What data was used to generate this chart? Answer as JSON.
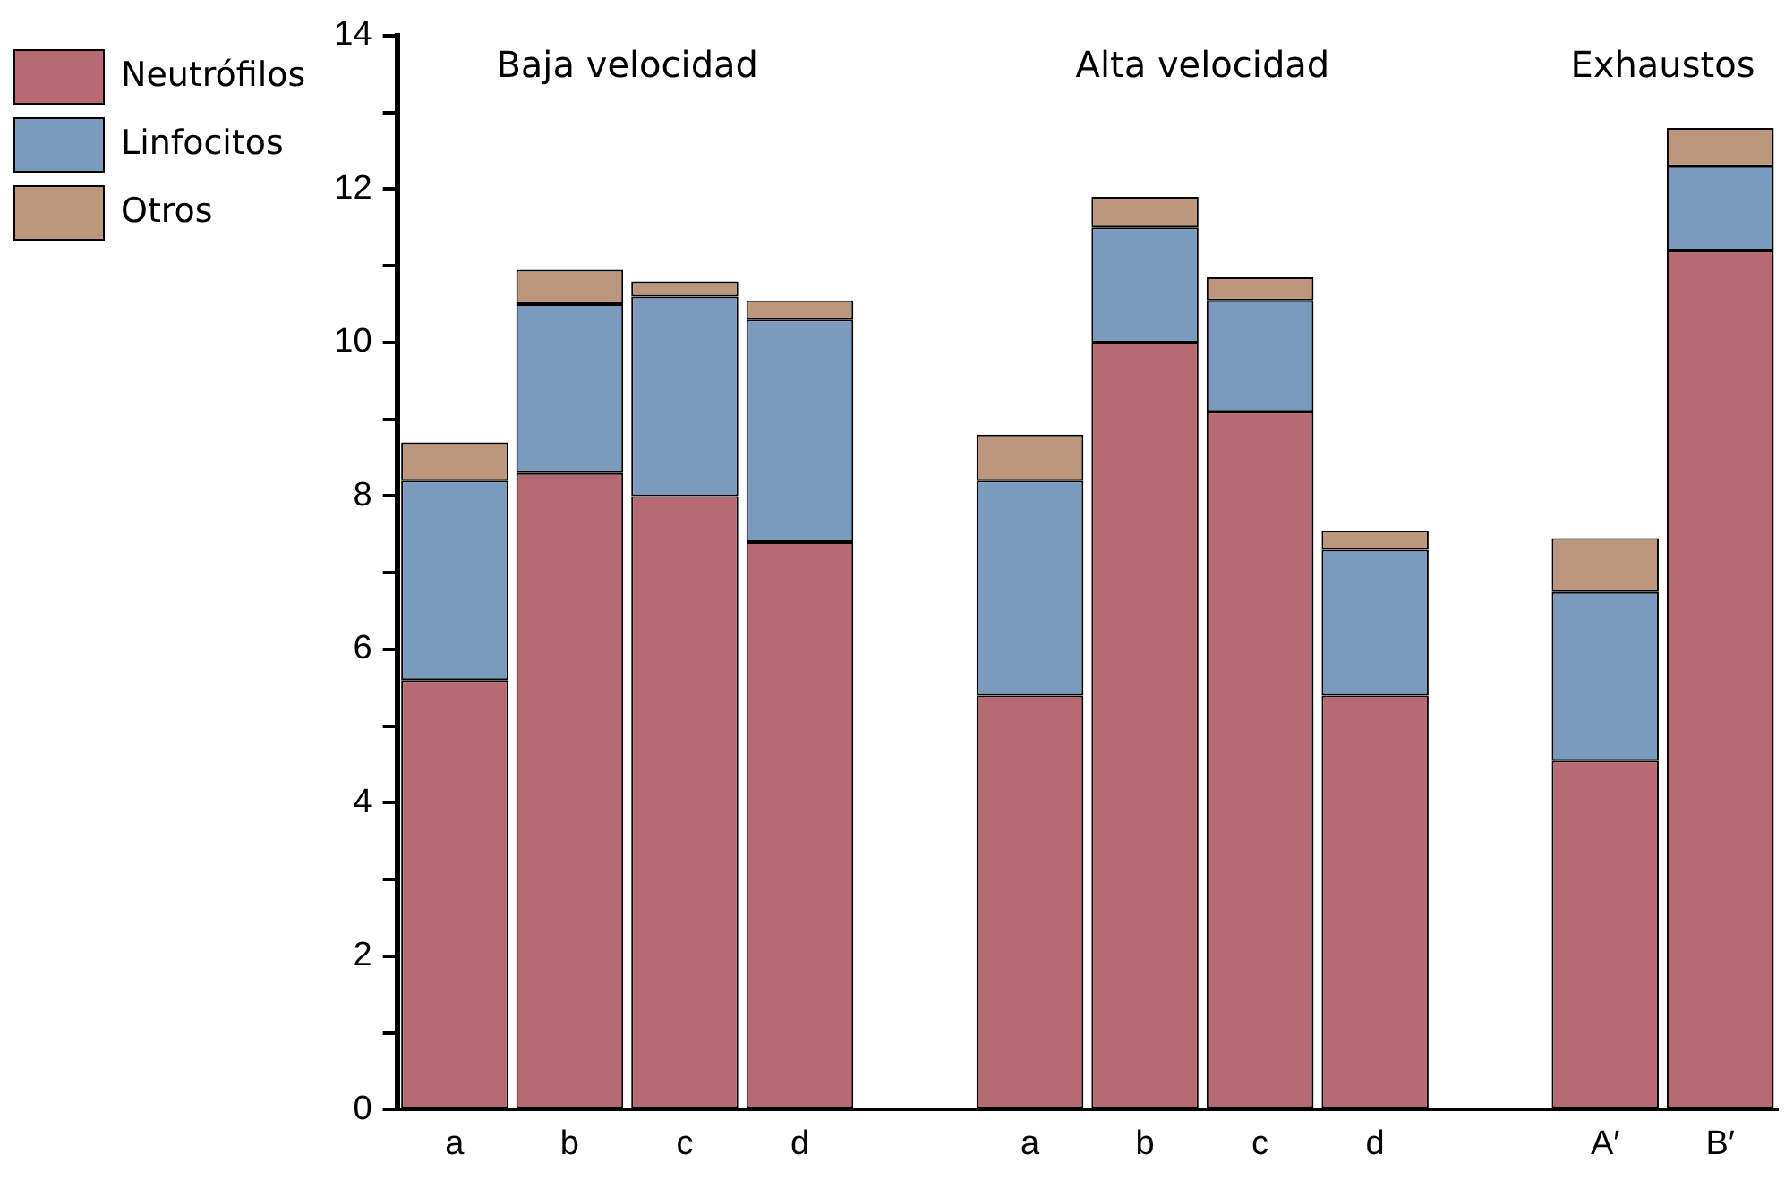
{
  "chart_data": {
    "type": "bar",
    "stacked": true,
    "categories": [
      "a",
      "b",
      "c",
      "d",
      null,
      "a",
      "b",
      "c",
      "d",
      null,
      "A′",
      "B′"
    ],
    "series": [
      {
        "name": "Neutrófilos",
        "color": "#b76a74",
        "values": [
          5.6,
          8.3,
          8.0,
          7.4,
          null,
          5.4,
          10.0,
          9.1,
          5.4,
          null,
          4.55,
          11.2
        ]
      },
      {
        "name": "Linfocitos",
        "color": "#7a9bbd",
        "values": [
          2.6,
          2.2,
          2.6,
          2.9,
          null,
          2.8,
          1.5,
          1.45,
          1.9,
          null,
          2.2,
          1.1
        ]
      },
      {
        "name": "Otros",
        "color": "#bc977c",
        "values": [
          0.5,
          0.45,
          0.2,
          0.25,
          null,
          0.6,
          0.4,
          0.3,
          0.25,
          null,
          0.7,
          0.5
        ]
      }
    ],
    "ylim": [
      0,
      14
    ],
    "yticks": [
      0,
      {
        "value": 1,
        "label": null
      },
      2,
      {
        "value": 3,
        "label": null
      },
      4,
      {
        "value": 5,
        "label": null
      },
      6,
      {
        "value": 7,
        "label": null
      },
      8,
      {
        "value": 9,
        "label": null
      },
      10,
      {
        "value": 11,
        "label": null
      },
      12,
      {
        "value": 13,
        "label": null
      },
      14
    ],
    "annotations": [
      "Baja velocidad",
      "Alta velocidad",
      "Exhaustos"
    ],
    "grid": false,
    "legend": "top left"
  }
}
